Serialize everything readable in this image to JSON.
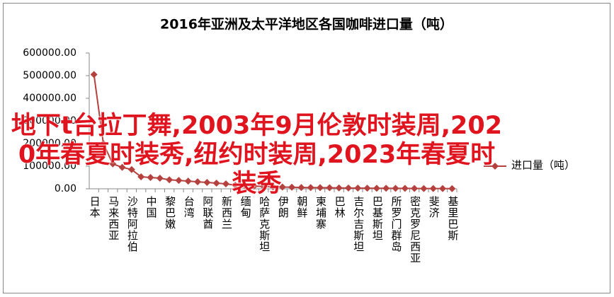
{
  "chart_data": {
    "type": "line",
    "title": "2016年亚洲及太平洋地区各国咖啡进口量（吨）",
    "annotation": "地下t台拉丁舞,2003年9月伦敦时装周,2020年春夏时装秀,纽约时装周,2023年春夏时装秀",
    "categories": [
      "日本",
      null,
      "马来西亚",
      null,
      "沙特阿拉伯",
      null,
      "中国",
      null,
      "黎巴嫩",
      null,
      "台湾",
      null,
      "阿联酋",
      null,
      "新西兰",
      null,
      "缅甸",
      null,
      "哈萨克斯坦",
      null,
      "伊朗",
      null,
      "朝鲜",
      null,
      "柬埔寨",
      null,
      "巴林",
      null,
      "吉尔吉斯坦",
      null,
      "巴基斯坦",
      null,
      "所罗门群岛",
      null,
      "密克罗尼西亚",
      null,
      "斐济",
      null,
      "基里巴斯"
    ],
    "series": [
      {
        "name": "进口量（吨）",
        "color": "#b5413f",
        "values": [
          505000,
          200000,
          110000,
          95000,
          85000,
          53000,
          50000,
          47000,
          40000,
          37000,
          34000,
          31000,
          28000,
          25000,
          22000,
          16000,
          15000,
          12000,
          10000,
          9000,
          8000,
          7000,
          6000,
          5500,
          5000,
          4500,
          4000,
          3500,
          3000,
          2800,
          2500,
          2200,
          2000,
          1800,
          1500,
          1300,
          1100,
          1000,
          800
        ]
      }
    ],
    "ylim": [
      0,
      600000
    ],
    "yticks": [
      {
        "value": 0,
        "label": "0.00"
      },
      {
        "value": 100000,
        "label": "100000.00"
      },
      {
        "value": 200000,
        "label": "200000.00"
      },
      {
        "value": 300000,
        "label": "300000.00"
      },
      {
        "value": 400000,
        "label": "400000.00"
      },
      {
        "value": 500000,
        "label": "500000.00"
      },
      {
        "value": 600000,
        "label": "600000.00"
      }
    ],
    "legend": "right"
  }
}
